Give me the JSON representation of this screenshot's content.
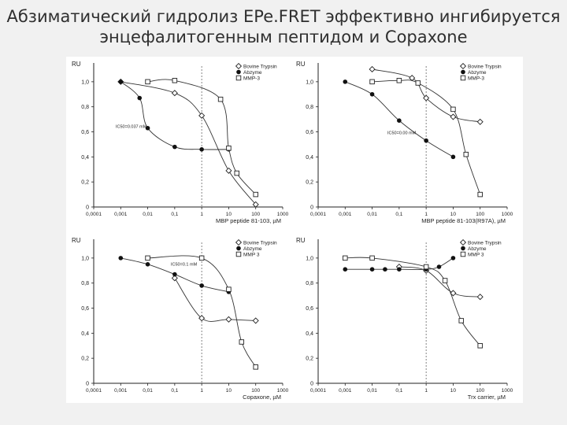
{
  "slide": {
    "title_line1": "Абзиматический гидролиз EPe.FRET эффективно ингибируется",
    "title_line2": "энцефалитогенным пептидом и Copaxone"
  },
  "chart_data": [
    {
      "type": "scatter",
      "title": "",
      "ylabel": "RU",
      "xlabel": "MBP peptide 81-103, µM",
      "xscale": "log",
      "xlim": [
        0.0001,
        1000
      ],
      "ylim": [
        0,
        1.15
      ],
      "xticks": [
        "0,0001",
        "0,001",
        "0,01",
        "0,1",
        "1",
        "10",
        "100",
        "1000"
      ],
      "yticks": [
        "0",
        "0,2",
        "0,4",
        "0,6",
        "0,8",
        "1,0"
      ],
      "legend": [
        "Bovine Trypsin",
        "Abzyme",
        "MMP-3"
      ],
      "legend_position": "top-right",
      "annotation": "IC50=0.037 mM",
      "series": [
        {
          "name": "Bovine Trypsin",
          "marker": "diamond",
          "x": [
            0.001,
            0.1,
            1,
            10,
            100
          ],
          "y": [
            1.0,
            0.91,
            0.73,
            0.29,
            0.02
          ]
        },
        {
          "name": "Abzyme",
          "marker": "filled-circle",
          "x": [
            0.001,
            0.005,
            0.01,
            0.1,
            1,
            10
          ],
          "y": [
            1.0,
            0.87,
            0.63,
            0.48,
            0.46,
            0.46
          ]
        },
        {
          "name": "MMP-3",
          "marker": "square",
          "x": [
            0.01,
            0.1,
            5,
            10,
            20,
            100
          ],
          "y": [
            1.0,
            1.01,
            0.86,
            0.47,
            0.27,
            0.1
          ]
        }
      ]
    },
    {
      "type": "scatter",
      "title": "",
      "ylabel": "RU",
      "xlabel": "MBP peptide 81-103(R97A), µM",
      "xscale": "log",
      "xlim": [
        0.0001,
        1000
      ],
      "ylim": [
        0,
        1.15
      ],
      "xticks": [
        "0,0001",
        "0,001",
        "0,01",
        "0,1",
        "1",
        "10",
        "100",
        "1000"
      ],
      "yticks": [
        "0",
        "0,2",
        "0,4",
        "0,6",
        "0,8",
        "1,0"
      ],
      "legend": [
        "Bovine Trypsin",
        "Abzyme",
        "MMP-3"
      ],
      "legend_position": "top-right",
      "annotation": "IC50=0.00 mM",
      "series": [
        {
          "name": "Bovine Trypsin",
          "marker": "diamond",
          "x": [
            0.01,
            0.3,
            1,
            10,
            100
          ],
          "y": [
            1.1,
            1.03,
            0.87,
            0.72,
            0.68
          ]
        },
        {
          "name": "Abzyme",
          "marker": "filled-circle",
          "x": [
            0.001,
            0.01,
            0.1,
            1,
            10
          ],
          "y": [
            1.0,
            0.9,
            0.69,
            0.53,
            0.4
          ]
        },
        {
          "name": "MMP-3",
          "marker": "square",
          "x": [
            0.01,
            0.1,
            0.5,
            10,
            30,
            100
          ],
          "y": [
            1.0,
            1.01,
            0.99,
            0.78,
            0.42,
            0.1
          ]
        }
      ]
    },
    {
      "type": "scatter",
      "title": "",
      "ylabel": "RU",
      "xlabel": "Copaxone, µM",
      "xscale": "log",
      "xlim": [
        0.0001,
        1000
      ],
      "ylim": [
        0,
        1.15
      ],
      "xticks": [
        "0,0001",
        "0,001",
        "0,01",
        "0,1",
        "1",
        "10",
        "100",
        "1000"
      ],
      "yticks": [
        "0",
        "0,2",
        "0,4",
        "0,6",
        "0,8",
        "1,0"
      ],
      "legend": [
        "Bovine Trypsin",
        "Abzyme",
        "MMP 3"
      ],
      "legend_position": "top-right",
      "annotation": "IC50=0.1 mM",
      "series": [
        {
          "name": "Bovine Trypsin",
          "marker": "diamond",
          "x": [
            0.1,
            1,
            10,
            100
          ],
          "y": [
            0.84,
            0.52,
            0.51,
            0.5
          ]
        },
        {
          "name": "Abzyme",
          "marker": "filled-circle",
          "x": [
            0.001,
            0.01,
            0.1,
            1,
            10
          ],
          "y": [
            1.0,
            0.95,
            0.87,
            0.78,
            0.73
          ]
        },
        {
          "name": "MMP 3",
          "marker": "square",
          "x": [
            0.01,
            1,
            10,
            30,
            100
          ],
          "y": [
            1.0,
            1.0,
            0.75,
            0.33,
            0.13
          ]
        }
      ]
    },
    {
      "type": "scatter",
      "title": "",
      "ylabel": "RU",
      "xlabel": "Trx carrier, µM",
      "xscale": "log",
      "xlim": [
        0.0001,
        1000
      ],
      "ylim": [
        0,
        1.15
      ],
      "xticks": [
        "0,0001",
        "0,001",
        "0,01",
        "0,1",
        "1",
        "10",
        "100",
        "1000"
      ],
      "yticks": [
        "0",
        "0,2",
        "0,4",
        "0,6",
        "0,8",
        "1,0"
      ],
      "legend": [
        "Bovine Trypsin",
        "Abzyme",
        "MMP 3"
      ],
      "legend_position": "top-right",
      "annotation": "",
      "series": [
        {
          "name": "Bovine Trypsin",
          "marker": "diamond",
          "x": [
            0.1,
            1,
            10,
            100
          ],
          "y": [
            0.93,
            0.9,
            0.72,
            0.69
          ]
        },
        {
          "name": "Abzyme",
          "marker": "filled-circle",
          "x": [
            0.001,
            0.01,
            0.03,
            0.1,
            1,
            3,
            10
          ],
          "y": [
            0.91,
            0.91,
            0.91,
            0.91,
            0.91,
            0.93,
            1.0
          ]
        },
        {
          "name": "MMP 3",
          "marker": "square",
          "x": [
            0.001,
            0.01,
            1,
            5,
            20,
            100
          ],
          "y": [
            1.0,
            1.0,
            0.93,
            0.82,
            0.5,
            0.3
          ]
        }
      ]
    }
  ]
}
